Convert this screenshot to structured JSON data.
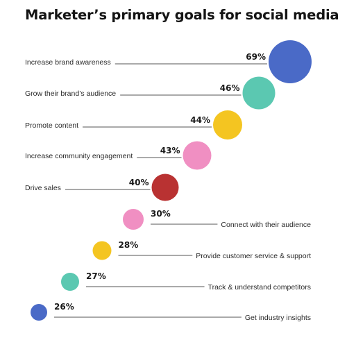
{
  "chart_data": {
    "type": "scatter",
    "title": "Marketer’s primary goals for social media",
    "xlabel": "",
    "ylabel": "",
    "unit": "%",
    "categories": [
      "Increase brand awareness",
      "Grow their brand’s audience",
      "Promote content",
      "Increase community engagement",
      "Drive sales",
      "Connect with their audience",
      "Provide customer service & support",
      "Track & understand competitors",
      "Get industry insights"
    ],
    "values": [
      69,
      46,
      44,
      43,
      40,
      30,
      28,
      27,
      26
    ],
    "value_labels": [
      "69%",
      "46%",
      "44%",
      "43%",
      "40%",
      "30%",
      "28%",
      "27%",
      "26%"
    ],
    "colors": [
      "#4a6ac7",
      "#5bc8b1",
      "#f4c521",
      "#f08fc2",
      "#b93232",
      "#f08fc2",
      "#f4c521",
      "#5bc8b1",
      "#4a6ac7"
    ],
    "grid": false,
    "legend": "none"
  }
}
